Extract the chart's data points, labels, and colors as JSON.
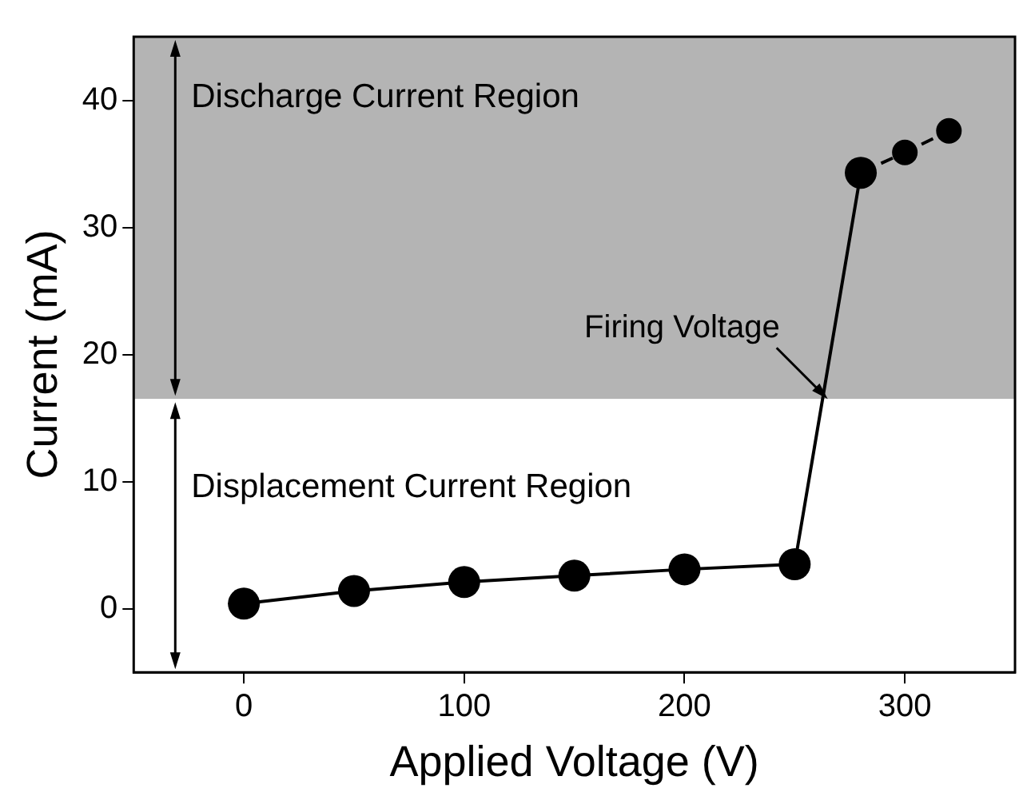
{
  "chart_data": {
    "type": "line",
    "xlabel": "Applied Voltage (V)",
    "ylabel": "Current (mA)",
    "series": [
      {
        "color": "#000000",
        "line_style": "solid",
        "x": [
          0,
          50,
          100,
          150,
          200,
          250,
          280
        ],
        "values": [
          0.4,
          1.4,
          2.1,
          2.6,
          3.1,
          3.5,
          34.3
        ]
      },
      {
        "color": "#000000",
        "line_style": "dashed",
        "x": [
          280,
          300,
          320
        ],
        "values": [
          34.3,
          35.9,
          37.6
        ]
      }
    ],
    "xlim": [
      -50,
      350
    ],
    "xticks": [
      0,
      100,
      200,
      300
    ],
    "ylim": [
      -5,
      45
    ],
    "yticks": [
      0,
      10,
      20,
      30,
      40
    ],
    "bands": [
      {
        "axis": "y",
        "from": 16.5,
        "to": 45,
        "label": "Discharge Current Region",
        "color": "#b4b4b4"
      },
      {
        "axis": "y",
        "from": -5,
        "to": 16.5,
        "label": "Displacement Current Region",
        "color": "#ffffff"
      }
    ],
    "annotations": [
      {
        "text": "Firing Voltage",
        "x": 265,
        "y": 16.5
      }
    ],
    "marker": "circle",
    "grid": false,
    "legend": false
  }
}
